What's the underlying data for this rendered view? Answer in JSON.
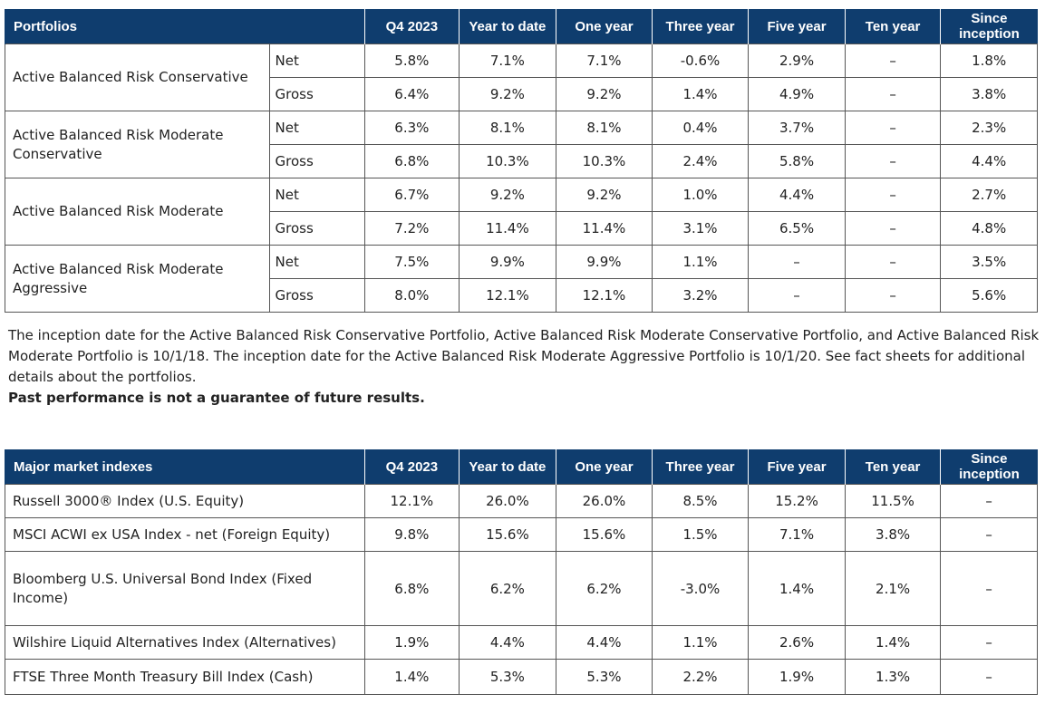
{
  "portfolios_table": {
    "headers": [
      "Portfolios",
      "Q4 2023",
      "Year to date",
      "One year",
      "Three year",
      "Five year",
      "Ten year",
      "Since inception"
    ],
    "rows": [
      {
        "name": "Active Balanced Risk Conservative",
        "net": {
          "label": "Net",
          "values": [
            "5.8%",
            "7.1%",
            "7.1%",
            "-0.6%",
            "2.9%",
            "–",
            "1.8%"
          ]
        },
        "gross": {
          "label": "Gross",
          "values": [
            "6.4%",
            "9.2%",
            "9.2%",
            "1.4%",
            "4.9%",
            "–",
            "3.8%"
          ]
        }
      },
      {
        "name": "Active Balanced Risk Moderate Conservative",
        "net": {
          "label": "Net",
          "values": [
            "6.3%",
            "8.1%",
            "8.1%",
            "0.4%",
            "3.7%",
            "–",
            "2.3%"
          ]
        },
        "gross": {
          "label": "Gross",
          "values": [
            "6.8%",
            "10.3%",
            "10.3%",
            "2.4%",
            "5.8%",
            "–",
            "4.4%"
          ]
        }
      },
      {
        "name": "Active Balanced Risk Moderate",
        "net": {
          "label": "Net",
          "values": [
            "6.7%",
            "9.2%",
            "9.2%",
            "1.0%",
            "4.4%",
            "–",
            "2.7%"
          ]
        },
        "gross": {
          "label": "Gross",
          "values": [
            "7.2%",
            "11.4%",
            "11.4%",
            "3.1%",
            "6.5%",
            "–",
            "4.8%"
          ]
        }
      },
      {
        "name": "Active Balanced Risk Moderate Aggressive",
        "net": {
          "label": "Net",
          "values": [
            "7.5%",
            "9.9%",
            "9.9%",
            "1.1%",
            "–",
            "–",
            "3.5%"
          ]
        },
        "gross": {
          "label": "Gross",
          "values": [
            "8.0%",
            "12.1%",
            "12.1%",
            "3.2%",
            "–",
            "–",
            "5.6%"
          ]
        }
      }
    ]
  },
  "notes": {
    "inception_text": "The inception date for the Active Balanced Risk Conservative Portfolio, Active Balanced Risk Moderate Conservative Portfolio, and Active Balanced Risk Moderate Portfolio is 10/1/18. The inception date for the Active Balanced Risk Moderate Aggressive Portfolio is 10/1/20. See fact sheets for additional details about the portfolios.",
    "disclaimer": "Past performance is not a guarantee of future results."
  },
  "indexes_table": {
    "headers": [
      "Major market indexes",
      "Q4 2023",
      "Year to date",
      "One year",
      "Three year",
      "Five year",
      "Ten year",
      "Since inception"
    ],
    "rows": [
      {
        "name": "Russell 3000® Index (U.S. Equity)",
        "values": [
          "12.1%",
          "26.0%",
          "26.0%",
          "8.5%",
          "15.2%",
          "11.5%",
          "–"
        ]
      },
      {
        "name": "MSCI ACWI ex USA Index - net (Foreign Equity)",
        "values": [
          "9.8%",
          "15.6%",
          "15.6%",
          "1.5%",
          "7.1%",
          "3.8%",
          "–"
        ]
      },
      {
        "name": "Bloomberg U.S. Universal Bond Index (Fixed Income)",
        "values": [
          "6.8%",
          "6.2%",
          "6.2%",
          "-3.0%",
          "1.4%",
          "2.1%",
          "–"
        ]
      },
      {
        "name": "Wilshire Liquid Alternatives Index (Alternatives)",
        "values": [
          "1.9%",
          "4.4%",
          "4.4%",
          "1.1%",
          "2.6%",
          "1.4%",
          "–"
        ]
      },
      {
        "name": "FTSE Three Month Treasury Bill Index (Cash)",
        "values": [
          "1.4%",
          "5.3%",
          "5.3%",
          "2.2%",
          "1.9%",
          "1.3%",
          "–"
        ]
      }
    ]
  },
  "colors": {
    "header_bg": "#0f3d6e",
    "header_text": "#ffffff",
    "border": "#555555"
  }
}
